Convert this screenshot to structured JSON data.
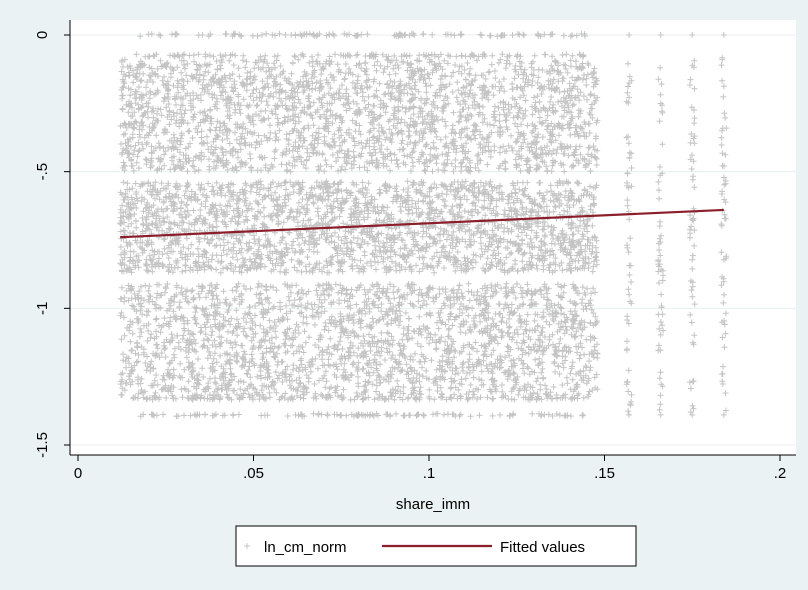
{
  "chart_data": {
    "type": "scatter",
    "title": "",
    "xlabel": "share_imm",
    "ylabel": "",
    "xlim": [
      0,
      0.2
    ],
    "ylim": [
      -1.5,
      0
    ],
    "x_ticks": [
      {
        "value": 0,
        "label": "0"
      },
      {
        "value": 0.05,
        "label": ".05"
      },
      {
        "value": 0.1,
        "label": ".1"
      },
      {
        "value": 0.15,
        "label": ".15"
      },
      {
        "value": 0.2,
        "label": ".2"
      }
    ],
    "y_ticks": [
      {
        "value": 0,
        "label": "0"
      },
      {
        "value": -0.5,
        "label": "-.5"
      },
      {
        "value": -1,
        "label": "-1"
      },
      {
        "value": -1.5,
        "label": "-1.5"
      }
    ],
    "grid": "horizontal",
    "legend": "bottom",
    "series": [
      {
        "name": "ln_cm_norm",
        "kind": "scatter",
        "marker": "plus",
        "color": "#c4c4c4",
        "x_range": [
          0.012,
          0.184
        ],
        "y_range": [
          -1.4,
          0
        ],
        "description_dense_x": [
          0.012,
          0.148
        ],
        "sparse_x_columns": [
          0.157,
          0.166,
          0.175,
          0.184
        ]
      },
      {
        "name": "Fitted values",
        "kind": "line",
        "color": "#8b1e2a",
        "x": [
          0.012,
          0.184
        ],
        "y": [
          -0.74,
          -0.64
        ]
      }
    ]
  }
}
